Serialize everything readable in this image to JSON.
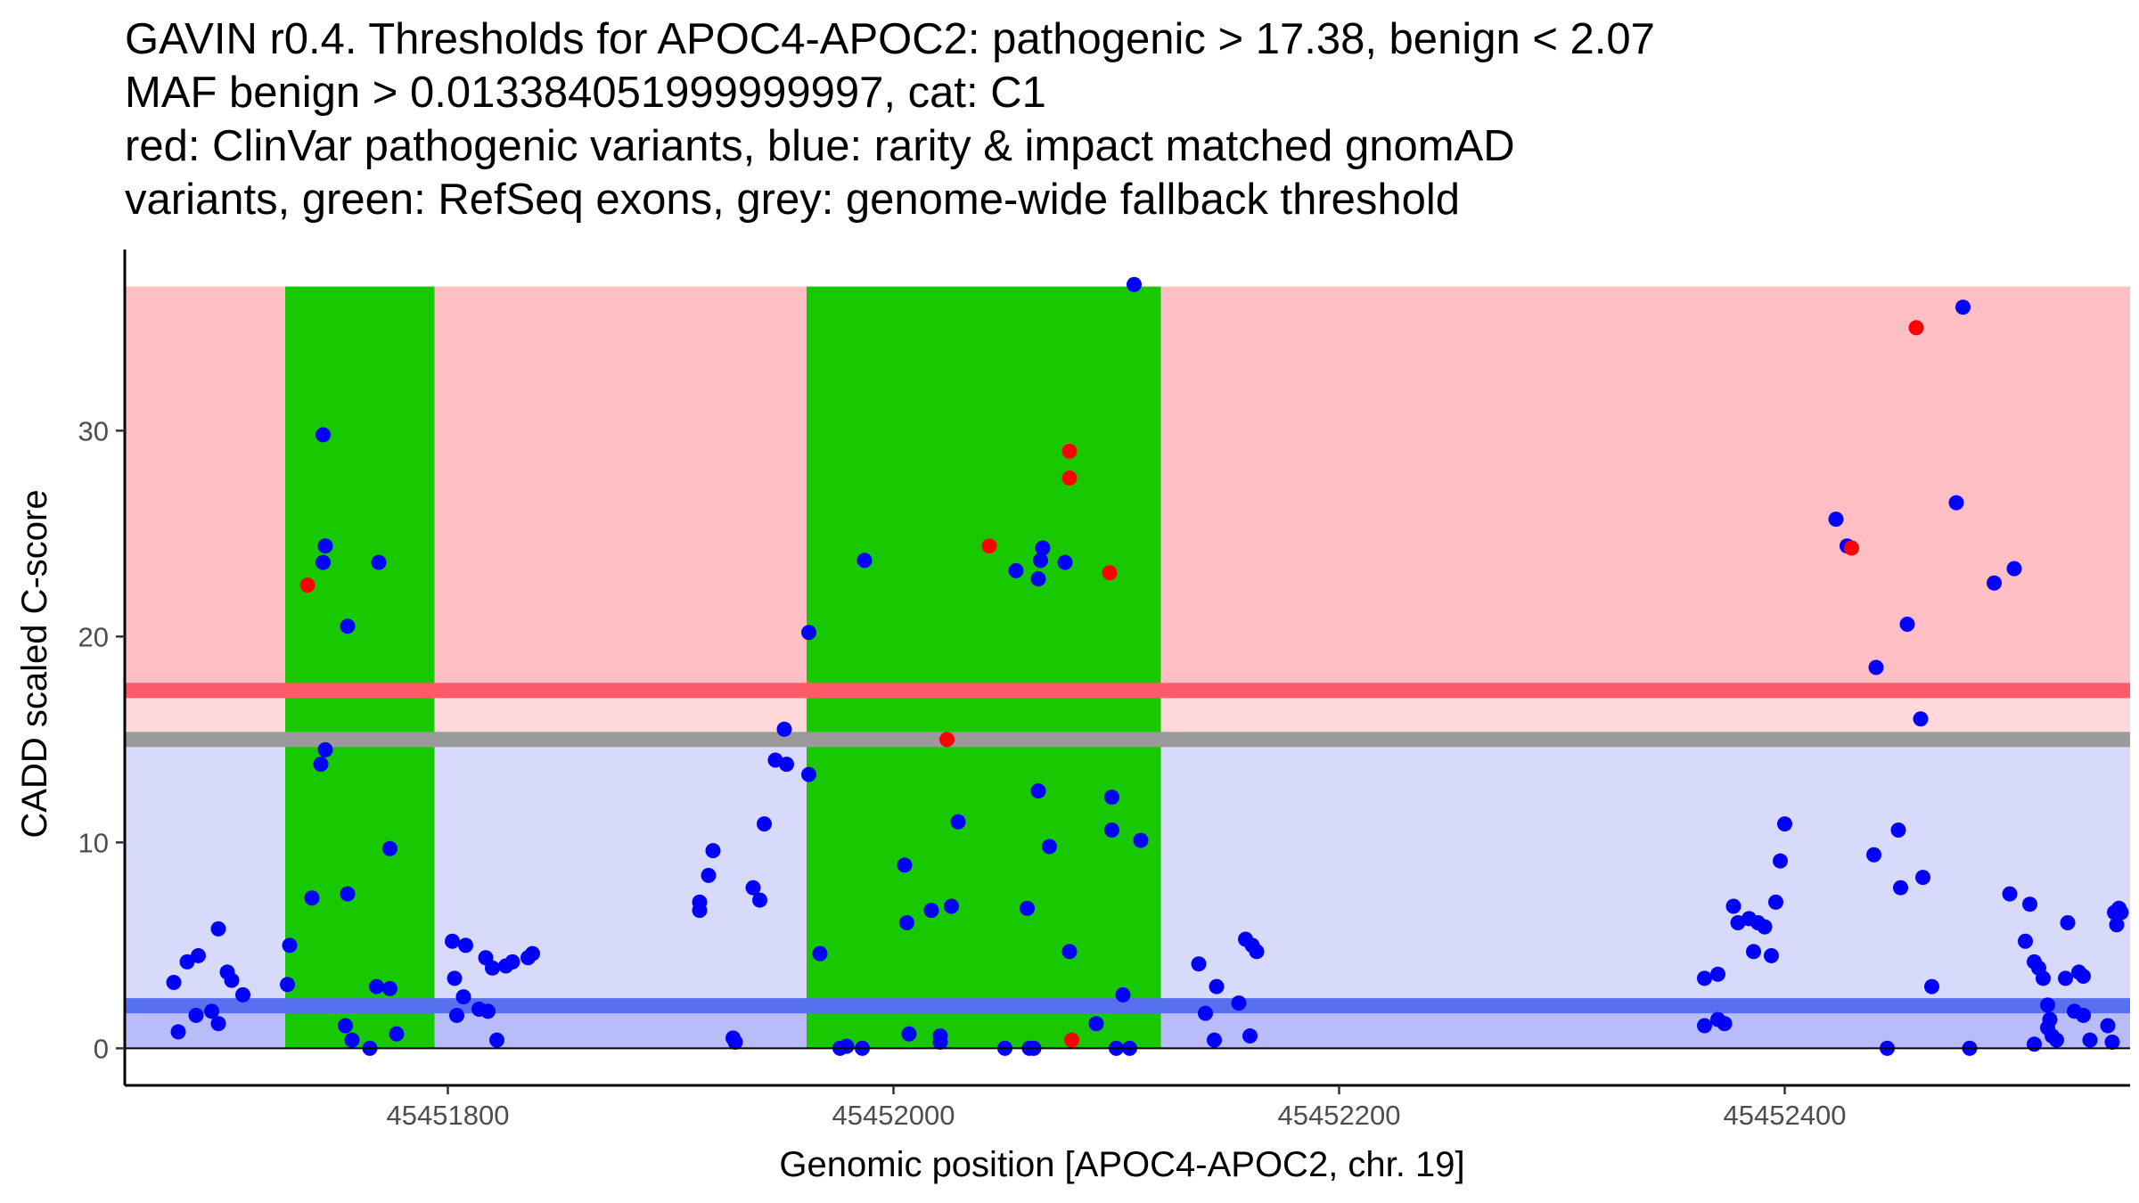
{
  "chart_data": {
    "type": "scatter",
    "title_lines": [
      "GAVIN r0.4. Thresholds for APOC4-APOC2: pathogenic > 17.38, benign < 2.07",
      "MAF benign > 0.013384051999999997, cat: C1",
      "red: ClinVar pathogenic variants, blue: rarity & impact matched gnomAD",
      "variants, green: RefSeq exons, grey: genome-wide fallback threshold"
    ],
    "xlabel": "Genomic position [APOC4-APOC2, chr. 19]",
    "ylabel": "CADD scaled C-score",
    "xlim": [
      45451655,
      45452555
    ],
    "ylim": [
      -1.8,
      38.8
    ],
    "x_ticks": [
      45451800,
      45452000,
      45452200,
      45452400
    ],
    "x_tick_labels": [
      "45451800",
      "45452000",
      "45452200",
      "45452400"
    ],
    "y_ticks": [
      0,
      10,
      20,
      30
    ],
    "y_tick_labels": [
      "0",
      "10",
      "20",
      "30"
    ],
    "colors": {
      "pathogenic_region": "#ffbfc4",
      "between_region": "#ffd9da",
      "benign_region": "#d8dafc",
      "below_benign_region": "#b8bcf8",
      "pathogenic_threshold_line": "#fe5a6a",
      "fallback_threshold_line": "#9a9a9a",
      "benign_threshold_line": "#5670f0",
      "exon": "#18c800",
      "pathogenic_variant": "#ff0000",
      "gnomad_variant": "#0000ff",
      "axis": "#000000"
    },
    "regions": {
      "x_start": 45451655,
      "x_end": 45452555,
      "y_max": 37,
      "pathogenic_threshold": 17.38,
      "benign_threshold": 2.07,
      "fallback_threshold": 15
    },
    "exons": [
      {
        "name": "exon 1",
        "start": 45451727,
        "end": 45451794
      },
      {
        "name": "exon 2",
        "start": 45451961,
        "end": 45452120
      }
    ],
    "series": [
      {
        "name": "ClinVar pathogenic",
        "color_key": "pathogenic_variant",
        "points": [
          [
            45451737,
            22.5
          ],
          [
            45452043,
            24.4
          ],
          [
            45452024,
            15.0
          ],
          [
            45452079,
            29.0
          ],
          [
            45452079,
            27.7
          ],
          [
            45452097,
            23.1
          ],
          [
            45452080,
            0.4
          ],
          [
            45452430,
            24.3
          ],
          [
            45452459,
            35.0
          ]
        ]
      },
      {
        "name": "gnomAD matched",
        "color_key": "gnomad_variant",
        "points": [
          [
            45451697,
            5.8
          ],
          [
            45451688,
            4.5
          ],
          [
            45451683,
            4.2
          ],
          [
            45451701,
            3.7
          ],
          [
            45451677,
            3.2
          ],
          [
            45451703,
            3.3
          ],
          [
            45451708,
            2.6
          ],
          [
            45451687,
            1.6
          ],
          [
            45451697,
            1.2
          ],
          [
            45451679,
            0.8
          ],
          [
            45451694,
            1.8
          ],
          [
            45451729,
            5.0
          ],
          [
            45451728,
            3.1
          ],
          [
            45451739,
            7.3
          ],
          [
            45451744,
            29.8
          ],
          [
            45451745,
            24.4
          ],
          [
            45451744,
            23.6
          ],
          [
            45451755,
            20.5
          ],
          [
            45451745,
            14.5
          ],
          [
            45451743,
            13.8
          ],
          [
            45451755,
            7.5
          ],
          [
            45451754,
            1.1
          ],
          [
            45451757,
            0.4
          ],
          [
            45451765,
            0.0
          ],
          [
            45451769,
            23.6
          ],
          [
            45451774,
            9.7
          ],
          [
            45451768,
            3.0
          ],
          [
            45451774,
            2.9
          ],
          [
            45451777,
            0.7
          ],
          [
            45451802,
            5.2
          ],
          [
            45451808,
            5.0
          ],
          [
            45451803,
            3.4
          ],
          [
            45451807,
            2.5
          ],
          [
            45451814,
            1.9
          ],
          [
            45451804,
            1.6
          ],
          [
            45451818,
            1.8
          ],
          [
            45451820,
            3.9
          ],
          [
            45451826,
            4.0
          ],
          [
            45451829,
            4.2
          ],
          [
            45451836,
            4.4
          ],
          [
            45451838,
            4.6
          ],
          [
            45451817,
            4.4
          ],
          [
            45451822,
            0.4
          ],
          [
            45451913,
            6.7
          ],
          [
            45451913,
            7.1
          ],
          [
            45451917,
            8.4
          ],
          [
            45451919,
            9.6
          ],
          [
            45451928,
            0.5
          ],
          [
            45451929,
            0.3
          ],
          [
            45451937,
            7.8
          ],
          [
            45451940,
            7.2
          ],
          [
            45451942,
            10.9
          ],
          [
            45451947,
            14.0
          ],
          [
            45451952,
            13.8
          ],
          [
            45451951,
            15.5
          ],
          [
            45451962,
            20.2
          ],
          [
            45451962,
            13.3
          ],
          [
            45451967,
            4.6
          ],
          [
            45451976,
            0.0
          ],
          [
            45451979,
            0.1
          ],
          [
            45451986,
            0.0
          ],
          [
            45451987,
            23.7
          ],
          [
            45452005,
            8.9
          ],
          [
            45452006,
            6.1
          ],
          [
            45452007,
            0.7
          ],
          [
            45452017,
            6.7
          ],
          [
            45452021,
            0.6
          ],
          [
            45452021,
            0.3
          ],
          [
            45452026,
            6.9
          ],
          [
            45452029,
            11.0
          ],
          [
            45452050,
            0.0
          ],
          [
            45452055,
            23.2
          ],
          [
            45452061,
            0.0
          ],
          [
            45452063,
            0.0
          ],
          [
            45452065,
            22.8
          ],
          [
            45452067,
            24.3
          ],
          [
            45452066,
            23.7
          ],
          [
            45452070,
            9.8
          ],
          [
            45452065,
            12.5
          ],
          [
            45452060,
            6.8
          ],
          [
            45452077,
            23.6
          ],
          [
            45452079,
            4.7
          ],
          [
            45452091,
            1.2
          ],
          [
            45452098,
            12.2
          ],
          [
            45452098,
            10.6
          ],
          [
            45452100,
            0.0
          ],
          [
            45452103,
            2.6
          ],
          [
            45452106,
            0.0
          ],
          [
            45452108,
            37.1
          ],
          [
            45452111,
            10.1
          ],
          [
            45452137,
            4.1
          ],
          [
            45452140,
            1.7
          ],
          [
            45452144,
            0.4
          ],
          [
            45452145,
            3.0
          ],
          [
            45452155,
            2.2
          ],
          [
            45452158,
            5.3
          ],
          [
            45452160,
            0.6
          ],
          [
            45452161,
            5.0
          ],
          [
            45452163,
            4.7
          ],
          [
            45452364,
            3.4
          ],
          [
            45452364,
            1.1
          ],
          [
            45452370,
            3.6
          ],
          [
            45452370,
            1.4
          ],
          [
            45452373,
            1.2
          ],
          [
            45452377,
            6.9
          ],
          [
            45452379,
            6.1
          ],
          [
            45452384,
            6.3
          ],
          [
            45452386,
            4.7
          ],
          [
            45452388,
            6.1
          ],
          [
            45452391,
            5.9
          ],
          [
            45452394,
            4.5
          ],
          [
            45452396,
            7.1
          ],
          [
            45452398,
            9.1
          ],
          [
            45452400,
            10.9
          ],
          [
            45452423,
            25.7
          ],
          [
            45452428,
            24.4
          ],
          [
            45452441,
            18.5
          ],
          [
            45452440,
            9.4
          ],
          [
            45452446,
            0.0
          ],
          [
            45452451,
            10.6
          ],
          [
            45452452,
            7.8
          ],
          [
            45452455,
            20.6
          ],
          [
            45452461,
            16.0
          ],
          [
            45452462,
            8.3
          ],
          [
            45452466,
            3.0
          ],
          [
            45452477,
            26.5
          ],
          [
            45452480,
            36.0
          ],
          [
            45452483,
            0.0
          ],
          [
            45452494,
            22.6
          ],
          [
            45452503,
            23.3
          ],
          [
            45452501,
            7.5
          ],
          [
            45452510,
            7.0
          ],
          [
            45452508,
            5.2
          ],
          [
            45452512,
            4.2
          ],
          [
            45452514,
            3.9
          ],
          [
            45452516,
            3.4
          ],
          [
            45452518,
            2.1
          ],
          [
            45452519,
            1.4
          ],
          [
            45452518,
            1.0
          ],
          [
            45452520,
            0.6
          ],
          [
            45452512,
            0.2
          ],
          [
            45452522,
            0.4
          ],
          [
            45452526,
            3.4
          ],
          [
            45452527,
            6.1
          ],
          [
            45452530,
            1.8
          ],
          [
            45452532,
            3.7
          ],
          [
            45452534,
            1.6
          ],
          [
            45452534,
            3.5
          ],
          [
            45452537,
            0.4
          ],
          [
            45452545,
            1.1
          ],
          [
            45452548,
            6.6
          ],
          [
            45452547,
            0.3
          ],
          [
            45452550,
            6.8
          ],
          [
            45452549,
            6.0
          ],
          [
            45452551,
            6.6
          ]
        ]
      }
    ]
  }
}
